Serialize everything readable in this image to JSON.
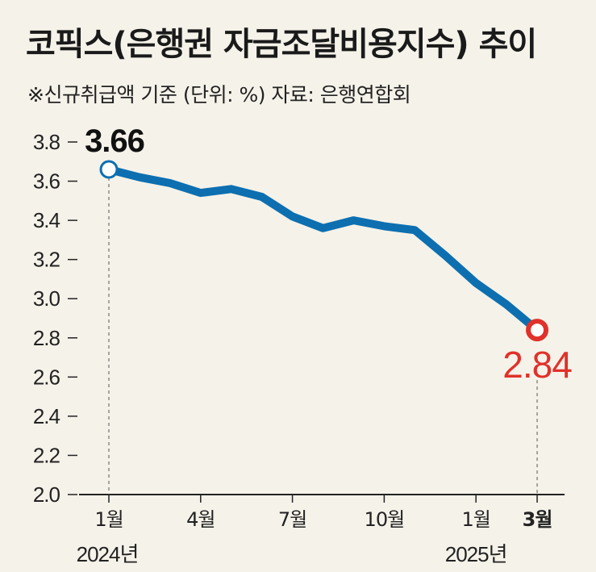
{
  "title": "코픽스(은행권 자금조달비용지수) 추이",
  "subtitle": "※신규취급액 기준 (단위: %) 자료: 은행연합회",
  "colors": {
    "line": "#0d6fb0",
    "start_marker_fill": "#ffffff",
    "end_marker": "#e0312a",
    "start_label": "#111111",
    "end_label": "#e0312a",
    "background": "#f5f2e9"
  },
  "chart_data": {
    "type": "line",
    "title": "코픽스(은행권 자금조달비용지수) 추이",
    "unit": "%",
    "ylim": [
      2.0,
      3.8
    ],
    "yticks": [
      "3.8",
      "3.6",
      "3.4",
      "3.2",
      "3.0",
      "2.8",
      "2.6",
      "2.4",
      "2.2",
      "2.0"
    ],
    "x": [
      "2024-01",
      "2024-02",
      "2024-03",
      "2024-04",
      "2024-05",
      "2024-06",
      "2024-07",
      "2024-08",
      "2024-09",
      "2024-10",
      "2024-11",
      "2024-12",
      "2025-01",
      "2025-02",
      "2025-03"
    ],
    "values": [
      3.66,
      3.62,
      3.59,
      3.54,
      3.56,
      3.52,
      3.42,
      3.36,
      3.4,
      3.37,
      3.35,
      3.22,
      3.08,
      2.97,
      2.84
    ],
    "xticks": [
      {
        "label": "1월",
        "index": 0,
        "bold": false
      },
      {
        "label": "4월",
        "index": 3,
        "bold": false
      },
      {
        "label": "7월",
        "index": 6,
        "bold": false
      },
      {
        "label": "10월",
        "index": 9,
        "bold": false
      },
      {
        "label": "1월",
        "index": 12,
        "bold": false
      },
      {
        "label": "3월",
        "index": 14,
        "bold": true
      }
    ],
    "year_labels": [
      {
        "label": "2024년",
        "index": 0
      },
      {
        "label": "2025년",
        "index": 12
      }
    ],
    "annotations": [
      {
        "label": "3.66",
        "index": 0
      },
      {
        "label": "2.84",
        "index": 14
      }
    ],
    "grid": false
  }
}
